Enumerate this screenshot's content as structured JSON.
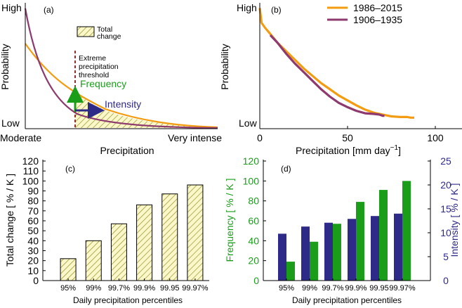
{
  "colors": {
    "orange": "#F39C12",
    "purple": "#8E3A6E",
    "green": "#1A9E1A",
    "navy": "#2E2A87",
    "hatch_fill": "#FBF7C8",
    "hatch_line": "#8C8C28",
    "threshold": "#8B1A1A"
  },
  "chart_data": [
    {
      "panel": "(a)",
      "type": "line",
      "ylabel": "Probability",
      "xlabel": "Precipitation",
      "y_ticks": [
        "High",
        "Low"
      ],
      "x_ticks": [
        "Moderate",
        "Very intense"
      ],
      "legend": [
        "Total",
        "change"
      ],
      "annotations": {
        "threshold": [
          "Extreme",
          "precipitation",
          "threshold"
        ],
        "frequency": "Frequency",
        "intensity": "Intensity"
      },
      "grid": false
    },
    {
      "panel": "(b)",
      "type": "line",
      "ylabel": "Probability",
      "xlabel_main": "Precipitation [mm day",
      "xlabel_sup": "−1",
      "xlabel_end": "]",
      "y_ticks": [
        "High",
        "Low"
      ],
      "xlim": [
        0,
        100
      ],
      "x_ticks": [
        0,
        50,
        100
      ],
      "x_tick_labels": [
        "0",
        "50",
        "100"
      ],
      "legend_position": "top-right",
      "series": [
        {
          "name": "1986–2015",
          "x": [
            0,
            1,
            3,
            6,
            10,
            15,
            20,
            25,
            30,
            35,
            40,
            45,
            50,
            55,
            60,
            65,
            70,
            75,
            80,
            84,
            86,
            88
          ],
          "y": [
            0.98,
            0.86,
            0.82,
            0.77,
            0.7,
            0.63,
            0.56,
            0.49,
            0.43,
            0.37,
            0.32,
            0.27,
            0.23,
            0.19,
            0.155,
            0.13,
            0.115,
            0.1,
            0.095,
            0.095,
            0.09,
            0.09
          ]
        },
        {
          "name": "1906–1935",
          "x": [
            6,
            10,
            15,
            20,
            25,
            30,
            35,
            40,
            45,
            50,
            55,
            60,
            65,
            68,
            70,
            71
          ],
          "y": [
            0.76,
            0.7,
            0.61,
            0.53,
            0.46,
            0.39,
            0.32,
            0.26,
            0.21,
            0.175,
            0.145,
            0.125,
            0.12,
            0.115,
            0.105,
            0.105
          ]
        }
      ]
    },
    {
      "panel": "(c)",
      "type": "bar",
      "ylabel": "Total change [ % / K ]",
      "xlabel": "Daily precipitation percentiles",
      "ylim": [
        0,
        120
      ],
      "y_ticks": [
        0,
        10,
        20,
        30,
        40,
        50,
        60,
        70,
        80,
        90,
        100,
        110,
        120
      ],
      "y_tick_labels": [
        "0",
        "10",
        "20",
        "30",
        "40",
        "50",
        "60",
        "70",
        "80",
        "90",
        "100",
        "110",
        "120"
      ],
      "categories": [
        "95%",
        "99%",
        "99.7%",
        "99.9%",
        "99.95",
        "99.97%"
      ],
      "values": [
        22,
        40,
        57,
        76,
        87,
        96
      ]
    },
    {
      "panel": "(d)",
      "type": "bar",
      "ylabel_left": "Frequency [ % / K ]",
      "ylabel_right": "Intensity [ % / K ]",
      "xlabel": "Daily precipitation percentiles",
      "ylim_left": [
        0,
        120
      ],
      "ylim_right": [
        0,
        25
      ],
      "y_ticks_left": [
        0,
        20,
        40,
        60,
        80,
        100,
        120
      ],
      "y_tick_labels_left": [
        "0",
        "20",
        "40",
        "60",
        "80",
        "100",
        "120"
      ],
      "y_ticks_right": [
        0,
        5,
        10,
        15,
        20,
        25
      ],
      "y_tick_labels_right": [
        "0",
        "5",
        "10",
        "15",
        "20",
        "25"
      ],
      "categories": [
        "95%",
        "99%",
        "99.7%",
        "99.9%",
        "99.95",
        "99.97%"
      ],
      "series": [
        {
          "axis": "right",
          "values": [
            9.8,
            11.3,
            12.1,
            12.9,
            13.5,
            14.0
          ]
        },
        {
          "axis": "left",
          "values": [
            19,
            39,
            57,
            79,
            91,
            100
          ]
        }
      ]
    }
  ]
}
